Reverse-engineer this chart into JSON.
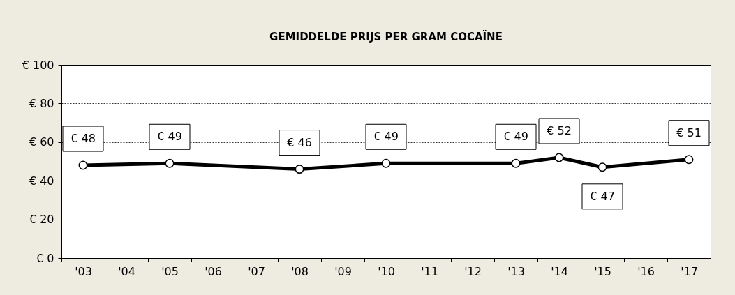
{
  "chart_data": {
    "type": "line",
    "title": "GEMIDDELDE PRIJS PER GRAM COCAÏNE",
    "categories": [
      "'03",
      "'04",
      "'05",
      "'06",
      "'07",
      "'08",
      "'09",
      "'10",
      "'11",
      "'12",
      "'13",
      "'14",
      "'15",
      "'16",
      "'17"
    ],
    "series": [
      {
        "color": "#000000",
        "values": [
          48,
          null,
          49,
          null,
          null,
          46,
          null,
          49,
          null,
          null,
          49,
          52,
          47,
          null,
          51
        ],
        "value_labels": [
          "€ 48",
          null,
          "€ 49",
          null,
          null,
          "€ 46",
          null,
          "€ 49",
          null,
          null,
          "€ 49",
          "€ 52",
          "€ 47",
          null,
          "€ 51"
        ]
      }
    ],
    "ylim": [
      0,
      100
    ],
    "yticks": [
      {
        "value": 0,
        "label": "€ 0"
      },
      {
        "value": 20,
        "label": "€ 20"
      },
      {
        "value": 40,
        "label": "€ 40"
      },
      {
        "value": 60,
        "label": "€ 60"
      },
      {
        "value": 80,
        "label": "€ 80"
      },
      {
        "value": 100,
        "label": "€ 100"
      }
    ],
    "grid": "y",
    "marker": "circle",
    "line_style": "solid"
  }
}
